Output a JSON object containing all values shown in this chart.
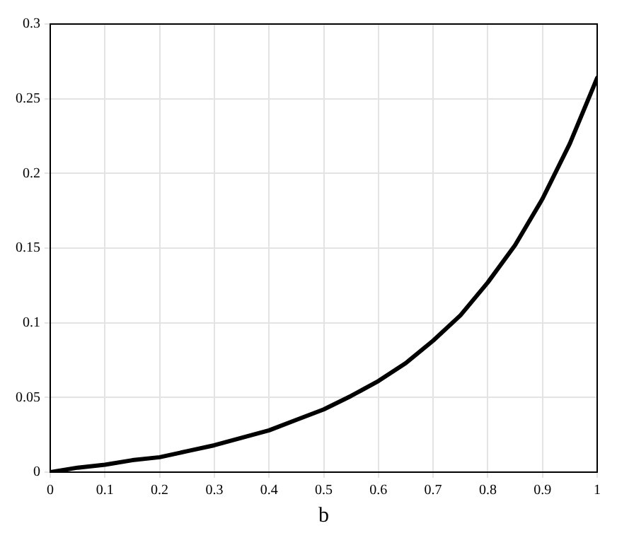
{
  "chart_data": {
    "type": "line",
    "xlabel": "b",
    "series": [
      {
        "color": "#000000",
        "x": [
          0,
          0.05,
          0.1,
          0.15,
          0.2,
          0.25,
          0.3,
          0.35,
          0.4,
          0.45,
          0.5,
          0.55,
          0.6,
          0.65,
          0.7,
          0.75,
          0.8,
          0.85,
          0.9,
          0.95,
          1
        ],
        "values": [
          0,
          0.003,
          0.005,
          0.008,
          0.01,
          0.014,
          0.018,
          0.023,
          0.028,
          0.035,
          0.042,
          0.051,
          0.061,
          0.073,
          0.088,
          0.105,
          0.127,
          0.152,
          0.183,
          0.22,
          0.264
        ]
      }
    ],
    "xlim": [
      0,
      1
    ],
    "xticks": [
      0,
      0.1,
      0.2,
      0.3,
      0.4,
      0.5,
      0.6,
      0.7,
      0.8,
      0.9,
      1
    ],
    "ylim": [
      0,
      0.3
    ],
    "yticks": [
      0,
      0.05,
      0.1,
      0.15,
      0.2,
      0.25,
      0.3
    ],
    "grid": true,
    "marker": "none",
    "line_style": "solid",
    "legend": false
  }
}
